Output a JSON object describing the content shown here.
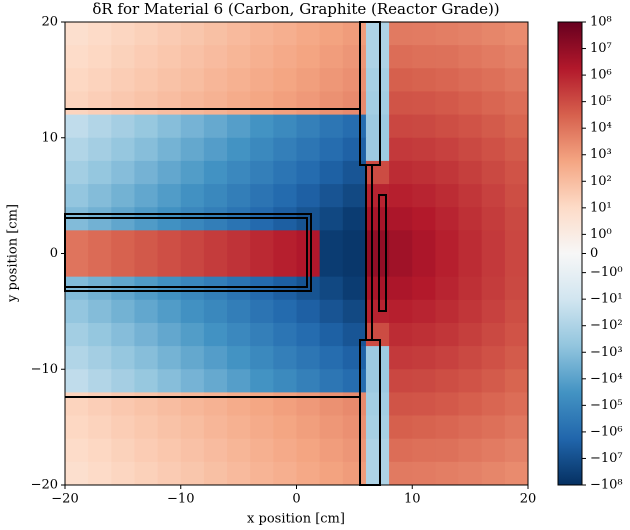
{
  "chart_data": {
    "type": "heatmap",
    "title": "δR for Material 6 (Carbon, Graphite (Reactor Grade))",
    "x_label": "x position [cm]",
    "y_label": "y position [cm]",
    "xlim": [
      -20,
      20
    ],
    "ylim": [
      -20,
      20
    ],
    "xticks": [
      {
        "value": -20,
        "label": "−20"
      },
      {
        "value": -10,
        "label": "−10"
      },
      0,
      10,
      20
    ],
    "yticks": [
      {
        "value": -20,
        "label": "−20"
      },
      {
        "value": -10,
        "label": "−10"
      },
      0,
      10,
      20
    ],
    "colormap": "RdBu_r",
    "color_scale": "symlog",
    "clim": [
      -100000000,
      100000000
    ],
    "colorbar_ticks": [
      {
        "value": 100000000,
        "label": "10⁸"
      },
      {
        "value": 10000000,
        "label": "10⁷"
      },
      {
        "value": 1000000,
        "label": "10⁶"
      },
      {
        "value": 100000,
        "label": "10⁵"
      },
      {
        "value": 10000,
        "label": "10⁴"
      },
      {
        "value": 1000,
        "label": "10³"
      },
      {
        "value": 100,
        "label": "10²"
      },
      {
        "value": 10,
        "label": "10¹"
      },
      {
        "value": 1,
        "label": "10⁰"
      },
      0,
      {
        "value": -1,
        "label": "−10⁰"
      },
      {
        "value": -10,
        "label": "−10¹"
      },
      {
        "value": -100,
        "label": "−10²"
      },
      {
        "value": -1000,
        "label": "−10³"
      },
      {
        "value": -10000,
        "label": "−10⁴"
      },
      {
        "value": -100000,
        "label": "−10⁵"
      },
      {
        "value": -1000000,
        "label": "−10⁶"
      },
      {
        "value": -10000000,
        "label": "−10⁷"
      },
      {
        "value": -100000000,
        "label": "−10⁸"
      }
    ],
    "values": [
      [
        6,
        10,
        15,
        22,
        34,
        52,
        79,
        120,
        190,
        280,
        430,
        660,
        1000,
        -100,
        7200,
        6800,
        5800,
        4700,
        3600,
        2600
      ],
      [
        9,
        13,
        21,
        32,
        48,
        74,
        110,
        170,
        260,
        400,
        600,
        930,
        1400,
        -100,
        15000,
        13000,
        12000,
        9100,
        6800,
        4700
      ],
      [
        13,
        19,
        30,
        45,
        68,
        100,
        160,
        240,
        370,
        560,
        850,
        1300,
        2000,
        -150,
        32000,
        28000,
        23000,
        17000,
        13000,
        8300
      ],
      [
        18,
        27,
        42,
        63,
        96,
        150,
        220,
        340,
        520,
        790,
        1200,
        1900,
        2800,
        -200,
        65000,
        59000,
        48000,
        34000,
        23000,
        15000
      ],
      [
        -32,
        -75,
        -180,
        -420,
        -1000,
        -2400,
        -5600,
        -13000,
        -32000,
        -75000,
        -180000,
        -420000,
        -1000000,
        -300,
        130000,
        120000,
        91000,
        66000,
        43000,
        25000
      ],
      [
        -79,
        -190,
        -450,
        -1000,
        -2500,
        -6000,
        -14000,
        -33000,
        -79000,
        -190000,
        -450000,
        -1000000,
        -2500000,
        -300,
        280000,
        240000,
        180000,
        120000,
        74000,
        43000
      ],
      [
        -200,
        -470,
        -1100,
        -2600,
        -6300,
        -15000,
        -35000,
        -84000,
        -200000,
        -470000,
        -1100000,
        -2700000,
        -6300000,
        100000,
        590000,
        480000,
        330000,
        210000,
        120000,
        66000
      ],
      [
        -500,
        -1200,
        -2800,
        -6700,
        -16000,
        -38000,
        -89000,
        -210000,
        -500000,
        -1200000,
        -2800000,
        -6700000,
        -16000000,
        1000000,
        1200000,
        930000,
        590000,
        330000,
        180000,
        91000
      ],
      [
        -1300,
        -3000,
        -7100,
        -17000,
        -40000,
        -95000,
        -220000,
        -530000,
        -1300000,
        -3000000,
        -7100000,
        -17000000,
        -40000000,
        3000000,
        2500000,
        1700000,
        930000,
        480000,
        240000,
        120000
      ],
      [
        10000,
        17000,
        29000,
        49000,
        83000,
        140000,
        240000,
        410000,
        690000,
        1200000,
        2000000,
        -40000000,
        -60000000,
        10000000,
        4700000,
        2500000,
        1200000,
        590000,
        280000,
        130000
      ],
      [
        10000,
        17000,
        29000,
        49000,
        83000,
        140000,
        240000,
        410000,
        690000,
        1200000,
        2000000,
        -40000000,
        -60000000,
        10000000,
        4700000,
        2500000,
        1200000,
        590000,
        280000,
        130000
      ],
      [
        -1300,
        -3000,
        -7100,
        -17000,
        -40000,
        -95000,
        -220000,
        -530000,
        -1300000,
        -3000000,
        -7100000,
        -17000000,
        -40000000,
        3000000,
        2500000,
        1700000,
        930000,
        480000,
        240000,
        120000
      ],
      [
        -500,
        -1200,
        -2800,
        -6700,
        -16000,
        -38000,
        -89000,
        -210000,
        -500000,
        -1200000,
        -2800000,
        -6700000,
        -16000000,
        1000000,
        1200000,
        930000,
        590000,
        330000,
        180000,
        91000
      ],
      [
        -200,
        -470,
        -1100,
        -2600,
        -6300,
        -15000,
        -35000,
        -84000,
        -200000,
        -470000,
        -1100000,
        -2700000,
        -6300000,
        100000,
        590000,
        480000,
        330000,
        210000,
        120000,
        66000
      ],
      [
        -79,
        -190,
        -450,
        -1000,
        -2500,
        -6000,
        -14000,
        -33000,
        -79000,
        -190000,
        -450000,
        -1000000,
        -2500000,
        -300,
        280000,
        240000,
        180000,
        120000,
        74000,
        43000
      ],
      [
        -32,
        -75,
        -180,
        -420,
        -1000,
        -2400,
        -5600,
        -13000,
        -32000,
        -75000,
        -180000,
        -420000,
        -1000000,
        -300,
        130000,
        120000,
        91000,
        66000,
        43000,
        25000
      ],
      [
        18,
        27,
        42,
        63,
        96,
        150,
        220,
        340,
        520,
        790,
        1200,
        1900,
        2800,
        -200,
        65000,
        59000,
        48000,
        34000,
        23000,
        15000
      ],
      [
        13,
        19,
        30,
        45,
        68,
        100,
        160,
        240,
        370,
        560,
        850,
        1300,
        2000,
        -150,
        32000,
        28000,
        23000,
        17000,
        13000,
        8300
      ],
      [
        9,
        13,
        21,
        32,
        48,
        74,
        110,
        170,
        260,
        400,
        600,
        930,
        1400,
        -100,
        15000,
        13000,
        12000,
        9100,
        6800,
        4700
      ],
      [
        6,
        10,
        15,
        22,
        34,
        52,
        79,
        120,
        190,
        280,
        430,
        660,
        1000,
        -100,
        7200,
        6800,
        5800,
        4700,
        3600,
        2600
      ]
    ]
  }
}
